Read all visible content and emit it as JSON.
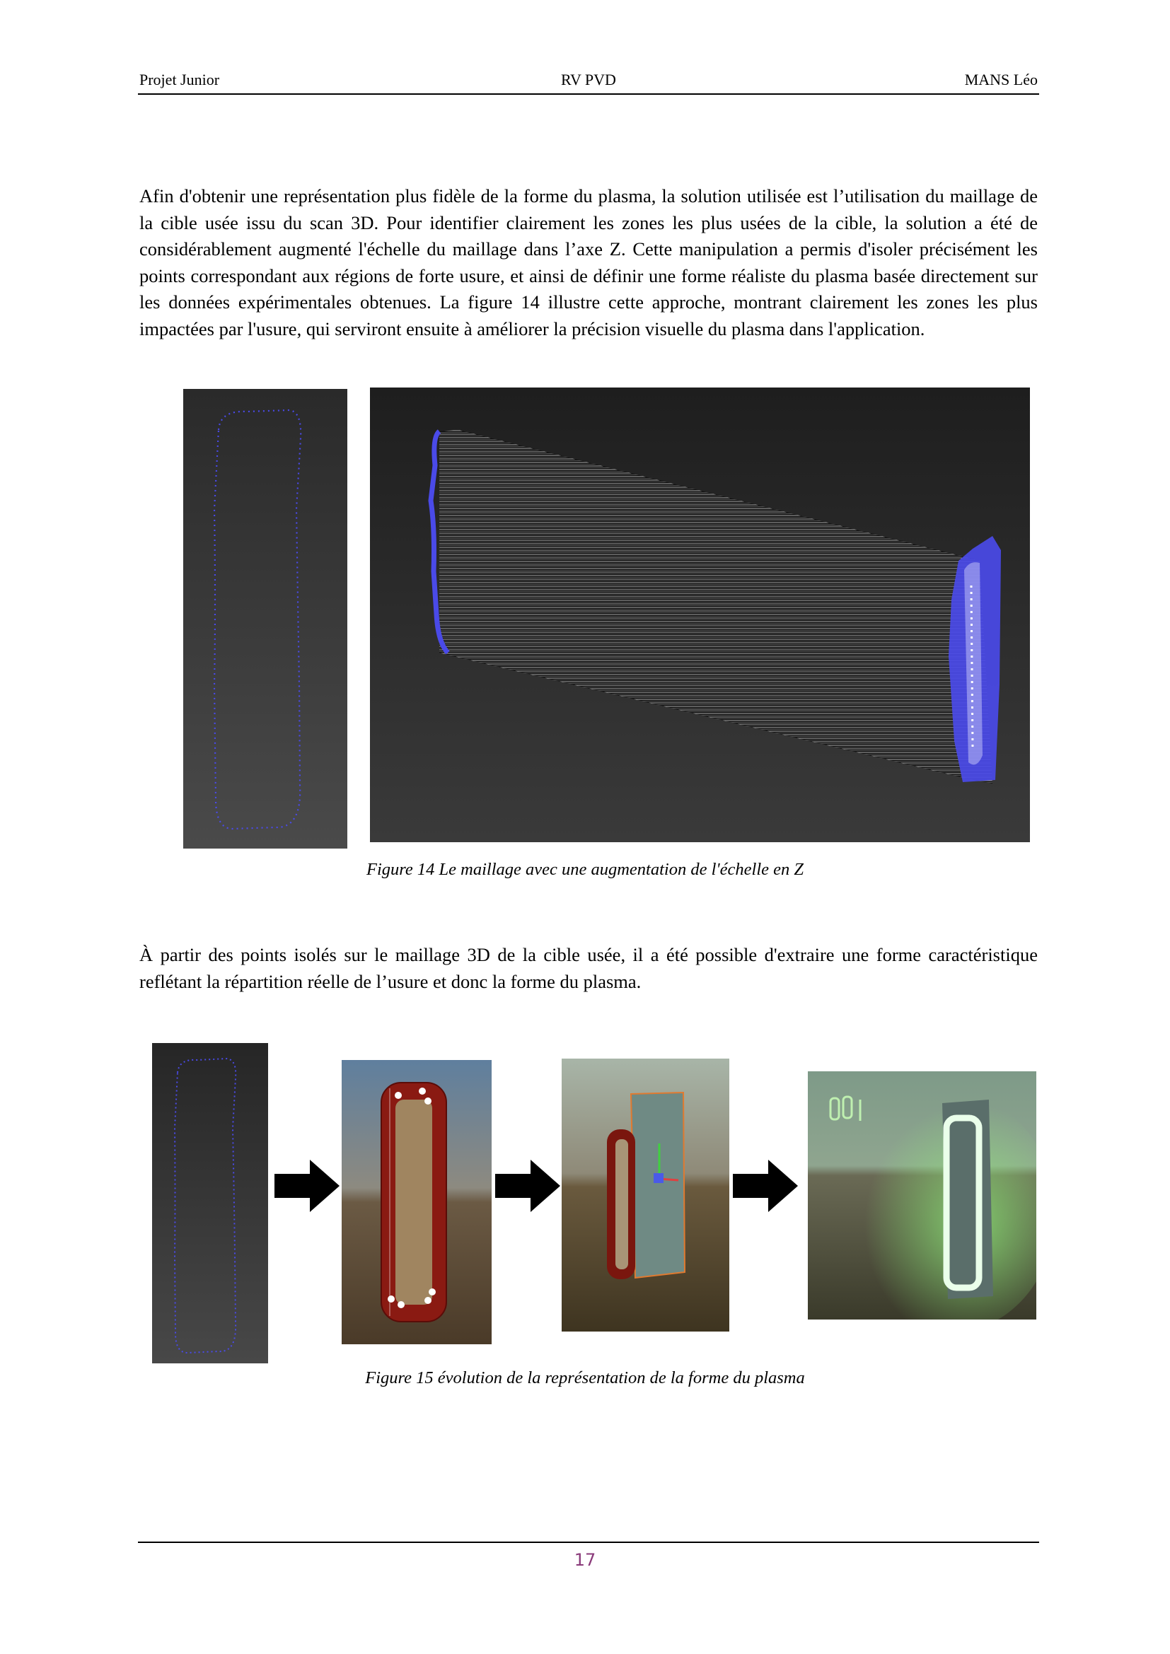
{
  "header": {
    "left": "Projet Junior",
    "center": "RV PVD",
    "right": "MANS Léo"
  },
  "paragraphs": [
    "Afin d'obtenir une représentation plus fidèle de la forme du plasma, la solution utilisée est l’utilisation du maillage de la cible usée issu du scan 3D. Pour identifier clairement les zones les plus usées de la cible, la solution a été de considérablement augmenté l'échelle du maillage dans l’axe Z. Cette manipulation a permis d'isoler précisément les points correspondant aux régions de forte usure, et ainsi de définir une forme réaliste du plasma basée directement sur les données expérimentales obtenues. La figure 14 illustre cette approche, montrant clairement les zones les plus impactées par l'usure, qui serviront ensuite à améliorer la précision visuelle du plasma dans l'application.",
    "À partir des points isolés sur le maillage 3D de la cible usée, il a été possible d'extraire une forme caractéristique reflétant la répartition réelle de l’usure et donc la forme du plasma."
  ],
  "figures": {
    "figure14": {
      "caption": "Figure 14 Le maillage avec une augmentation de l'échelle en Z",
      "panels": [
        "isolated-points-outline",
        "z-scaled-mesh-wireframe"
      ]
    },
    "figure15": {
      "caption": "Figure 15 évolution de la représentation de la forme du plasma",
      "panels": [
        "isolated-points-outline",
        "extracted-shape",
        "shape-on-target",
        "glowing-plasma-render"
      ]
    }
  },
  "colors": {
    "point_blue": "#4a4ae8",
    "dark_bg": "#2e2e2e",
    "plasma_red": "#8a1a12",
    "plasma_green": "#7fe07a",
    "page_number": "#8a3a7a"
  },
  "footer": {
    "page_number": "17"
  }
}
